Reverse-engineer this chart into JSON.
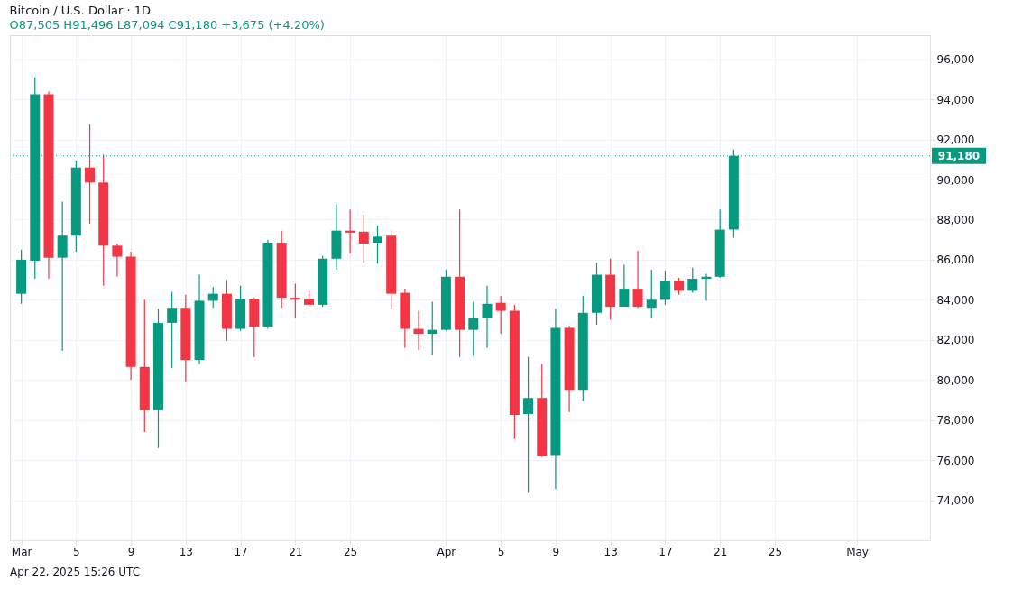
{
  "chart_data": {
    "type": "candlestick",
    "title": "Bitcoin / U.S. Dollar · 1D",
    "subtitle": "O87,505 H91,496 L87,094 C91,180 +3,675 (+4.20%)",
    "annotations": [
      "Apr 22, 2025 15:26 UTC"
    ],
    "x": [
      "2025-03-01",
      "2025-03-02",
      "2025-03-03",
      "2025-03-04",
      "2025-03-05",
      "2025-03-06",
      "2025-03-07",
      "2025-03-08",
      "2025-03-09",
      "2025-03-10",
      "2025-03-11",
      "2025-03-12",
      "2025-03-13",
      "2025-03-14",
      "2025-03-15",
      "2025-03-16",
      "2025-03-17",
      "2025-03-18",
      "2025-03-19",
      "2025-03-20",
      "2025-03-21",
      "2025-03-22",
      "2025-03-23",
      "2025-03-24",
      "2025-03-25",
      "2025-03-26",
      "2025-03-27",
      "2025-03-28",
      "2025-03-29",
      "2025-03-30",
      "2025-03-31",
      "2025-04-01",
      "2025-04-02",
      "2025-04-03",
      "2025-04-04",
      "2025-04-05",
      "2025-04-06",
      "2025-04-07",
      "2025-04-08",
      "2025-04-09",
      "2025-04-10",
      "2025-04-11",
      "2025-04-12",
      "2025-04-13",
      "2025-04-14",
      "2025-04-15",
      "2025-04-16",
      "2025-04-17",
      "2025-04-18",
      "2025-04-19",
      "2025-04-20",
      "2025-04-21",
      "2025-04-22"
    ],
    "ohlc": [
      [
        84300,
        86500,
        83800,
        86000
      ],
      [
        85950,
        95100,
        85050,
        94250
      ],
      [
        94250,
        94400,
        85050,
        86100
      ],
      [
        86100,
        88900,
        81450,
        87200
      ],
      [
        87200,
        90950,
        86400,
        90600
      ],
      [
        90600,
        92750,
        87800,
        89850
      ],
      [
        89850,
        91250,
        84700,
        86700
      ],
      [
        86700,
        86800,
        85150,
        86150
      ],
      [
        86150,
        86400,
        80000,
        80650
      ],
      [
        80650,
        84000,
        77400,
        78500
      ],
      [
        78500,
        83550,
        76600,
        82850
      ],
      [
        82850,
        84400,
        80600,
        83600
      ],
      [
        83600,
        84250,
        79900,
        81000
      ],
      [
        81000,
        85250,
        80800,
        83950
      ],
      [
        83950,
        84650,
        83600,
        84300
      ],
      [
        84300,
        85000,
        81950,
        82550
      ],
      [
        82550,
        84700,
        82450,
        84050
      ],
      [
        84050,
        84100,
        81150,
        82650
      ],
      [
        82650,
        87000,
        82550,
        86850
      ],
      [
        86850,
        87450,
        83600,
        84100
      ],
      [
        84100,
        84800,
        83100,
        84000
      ],
      [
        84050,
        84450,
        83650,
        83750
      ],
      [
        83750,
        86200,
        83650,
        86050
      ],
      [
        86050,
        88750,
        85500,
        87450
      ],
      [
        87450,
        88500,
        86300,
        87350
      ],
      [
        87400,
        88250,
        85850,
        86800
      ],
      [
        86850,
        87700,
        85800,
        87150
      ],
      [
        87200,
        87450,
        83500,
        84300
      ],
      [
        84350,
        84550,
        81600,
        82550
      ],
      [
        82550,
        83450,
        81500,
        82300
      ],
      [
        82300,
        83900,
        81250,
        82500
      ],
      [
        82500,
        85500,
        82450,
        85150
      ],
      [
        85150,
        88500,
        81150,
        82500
      ],
      [
        82500,
        83900,
        81200,
        83100
      ],
      [
        83100,
        84700,
        81600,
        83800
      ],
      [
        83850,
        84200,
        82300,
        83450
      ],
      [
        83450,
        83750,
        77050,
        78250
      ],
      [
        78300,
        81150,
        74400,
        79100
      ],
      [
        79100,
        80800,
        76150,
        76200
      ],
      [
        76250,
        83550,
        74550,
        82600
      ],
      [
        82600,
        82700,
        78400,
        79500
      ],
      [
        79500,
        84200,
        78950,
        83350
      ],
      [
        83350,
        85850,
        82750,
        85250
      ],
      [
        85250,
        86050,
        83000,
        83650
      ],
      [
        83650,
        85750,
        83650,
        84550
      ],
      [
        84550,
        86450,
        83600,
        83650
      ],
      [
        83600,
        85500,
        83100,
        84000
      ],
      [
        84000,
        85450,
        83750,
        84950
      ],
      [
        84950,
        85100,
        84250,
        84450
      ],
      [
        84450,
        85600,
        84350,
        85050
      ],
      [
        85050,
        85300,
        83950,
        85150
      ],
      [
        85150,
        88500,
        85100,
        87500
      ],
      [
        87505,
        91496,
        87094,
        91180
      ]
    ],
    "colors": [
      "#089981",
      "#089981",
      "#f23645",
      "#089981",
      "#089981",
      "#f23645",
      "#f23645",
      "#f23645",
      "#f23645",
      "#f23645",
      "#089981",
      "#089981",
      "#f23645",
      "#089981",
      "#089981",
      "#f23645",
      "#089981",
      "#f23645",
      "#089981",
      "#f23645",
      "#f23645",
      "#f23645",
      "#089981",
      "#089981",
      "#f23645",
      "#f23645",
      "#089981",
      "#f23645",
      "#f23645",
      "#f23645",
      "#089981",
      "#089981",
      "#f23645",
      "#089981",
      "#089981",
      "#f23645",
      "#f23645",
      "#089981",
      "#f23645",
      "#089981",
      "#f23645",
      "#089981",
      "#089981",
      "#f23645",
      "#089981",
      "#f23645",
      "#089981",
      "#089981",
      "#f23645",
      "#089981",
      "#089981",
      "#089981",
      "#089981"
    ],
    "xlim": [
      "2025-02-28T12:00",
      "2025-05-06"
    ],
    "xticks": [
      {
        "value": "2025-03-01",
        "label": "Mar"
      },
      {
        "value": "2025-03-05",
        "label": "5"
      },
      {
        "value": "2025-03-09",
        "label": "9"
      },
      {
        "value": "2025-03-13",
        "label": "13"
      },
      {
        "value": "2025-03-17",
        "label": "17"
      },
      {
        "value": "2025-03-21",
        "label": "21"
      },
      {
        "value": "2025-03-25",
        "label": "25"
      },
      {
        "value": "2025-04-01",
        "label": "Apr"
      },
      {
        "value": "2025-04-05",
        "label": "5"
      },
      {
        "value": "2025-04-09",
        "label": "9"
      },
      {
        "value": "2025-04-13",
        "label": "13"
      },
      {
        "value": "2025-04-17",
        "label": "17"
      },
      {
        "value": "2025-04-21",
        "label": "21"
      },
      {
        "value": "2025-04-25",
        "label": "25"
      },
      {
        "value": "2025-05-01",
        "label": "May"
      }
    ],
    "ylim": [
      72000,
      97200
    ],
    "yticks": [
      {
        "value": 74000,
        "label": "74,000"
      },
      {
        "value": 76000,
        "label": "76,000"
      },
      {
        "value": 78000,
        "label": "78,000"
      },
      {
        "value": 80000,
        "label": "80,000"
      },
      {
        "value": 82000,
        "label": "82,000"
      },
      {
        "value": 84000,
        "label": "84,000"
      },
      {
        "value": 86000,
        "label": "86,000"
      },
      {
        "value": 88000,
        "label": "88,000"
      },
      {
        "value": 90000,
        "label": "90,000"
      },
      {
        "value": 92000,
        "label": "92,000"
      },
      {
        "value": 94000,
        "label": "94,000"
      },
      {
        "value": 96000,
        "label": "96,000"
      }
    ],
    "ref_lines": [
      {
        "axis": "y",
        "value": 91180,
        "label": "91,180",
        "color": "#089981",
        "line_style": "dotted"
      }
    ],
    "grid": true,
    "legend": false
  }
}
